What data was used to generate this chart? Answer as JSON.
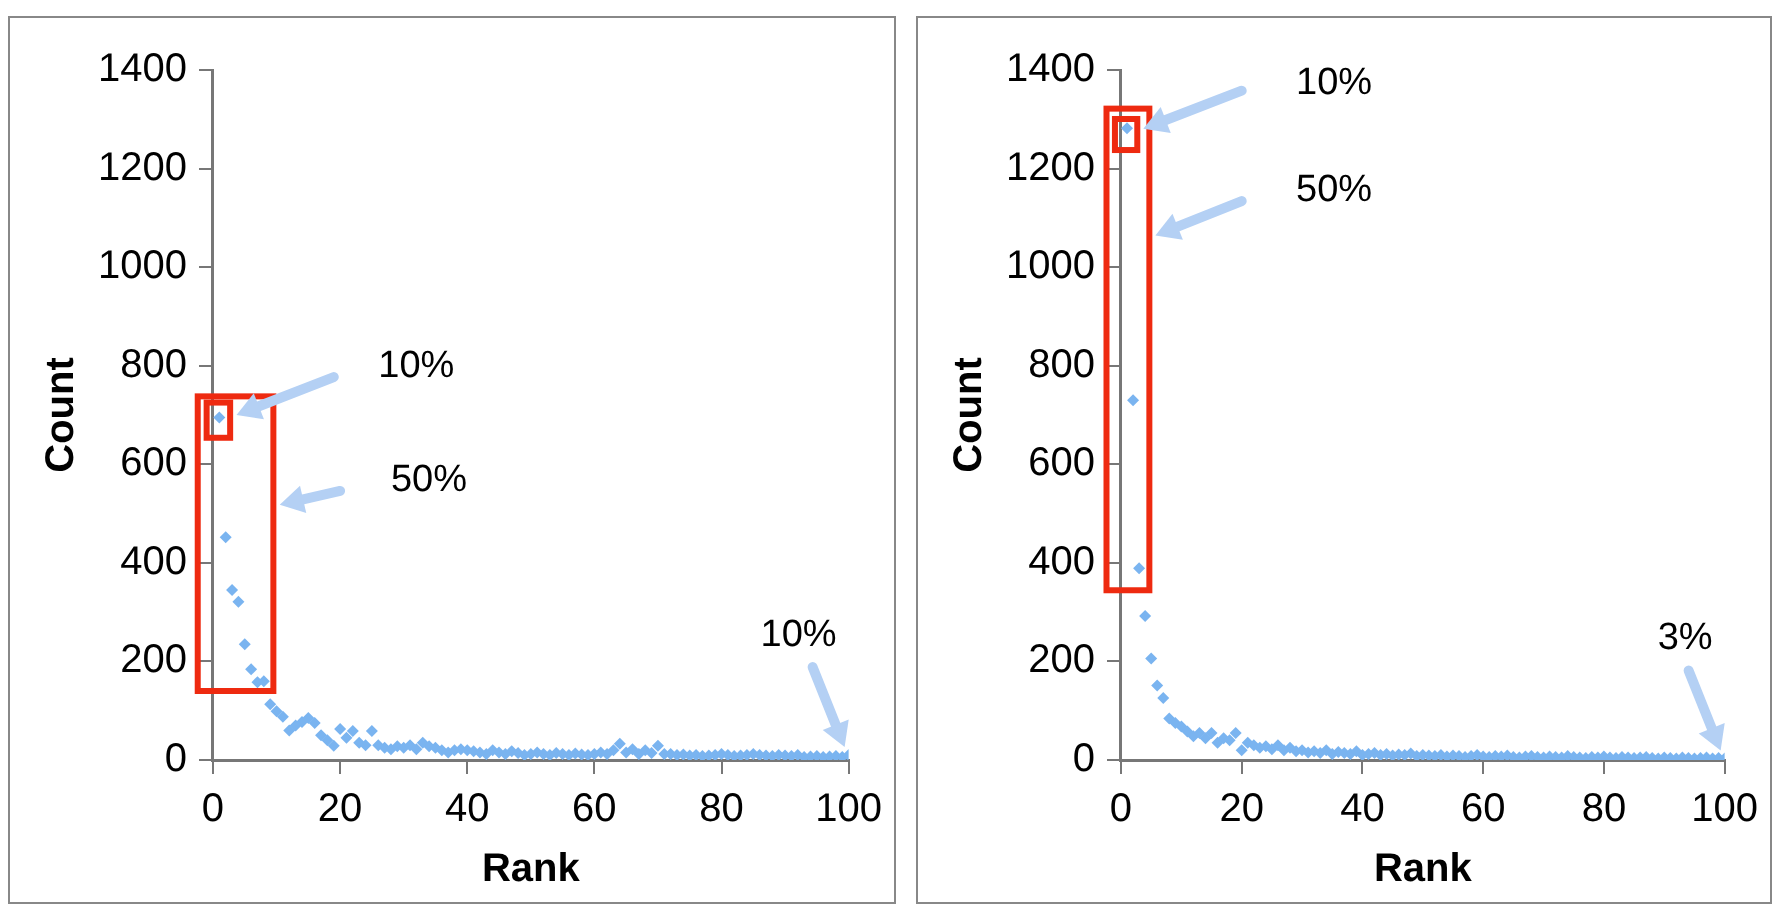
{
  "chart_data": [
    {
      "type": "scatter",
      "xlabel": "Rank",
      "ylabel": "Count",
      "xlim": [
        0,
        100
      ],
      "xticks": [
        0,
        20,
        40,
        60,
        80,
        100
      ],
      "ylim": [
        0,
        1400
      ],
      "yticks": [
        0,
        200,
        400,
        600,
        800,
        1000,
        1200,
        1400
      ],
      "marker": "diamond",
      "legend": false,
      "grid": false,
      "x": [
        1,
        2,
        3,
        4,
        5,
        6,
        7,
        8,
        9,
        10,
        11,
        12,
        13,
        14,
        15,
        16,
        17,
        18,
        19,
        20,
        21,
        22,
        23,
        24,
        25,
        26,
        27,
        28,
        29,
        30,
        31,
        32,
        33,
        34,
        35,
        36,
        37,
        38,
        39,
        40,
        41,
        42,
        43,
        44,
        45,
        46,
        47,
        48,
        49,
        50,
        51,
        52,
        53,
        54,
        55,
        56,
        57,
        58,
        59,
        60,
        61,
        62,
        63,
        64,
        65,
        66,
        67,
        68,
        69,
        70,
        71,
        72,
        73,
        74,
        75,
        76,
        77,
        78,
        79,
        80,
        81,
        82,
        83,
        84,
        85,
        86,
        87,
        88,
        89,
        90,
        91,
        92,
        93,
        94,
        95,
        96,
        97,
        98,
        99,
        100
      ],
      "series": [
        {
          "color": "#7ab4f0",
          "values": [
            695,
            452,
            345,
            321,
            235,
            184,
            158,
            160,
            113,
            99,
            88,
            60,
            70,
            77,
            85,
            75,
            50,
            40,
            29,
            63,
            45,
            59,
            35,
            30,
            59,
            30,
            25,
            22,
            28,
            25,
            30,
            22,
            35,
            28,
            25,
            20,
            15,
            20,
            22,
            20,
            18,
            15,
            12,
            20,
            15,
            12,
            18,
            14,
            10,
            12,
            15,
            12,
            10,
            14,
            12,
            10,
            13,
            11,
            10,
            12,
            15,
            12,
            20,
            33,
            15,
            22,
            12,
            20,
            14,
            29,
            12,
            12,
            10,
            11,
            9,
            10,
            8,
            9,
            10,
            12,
            10,
            8,
            9,
            10,
            12,
            10,
            9,
            8,
            10,
            9,
            8,
            10,
            6,
            7,
            8,
            6,
            7,
            8,
            6,
            10
          ]
        }
      ],
      "annotations": [
        "10%",
        "50%",
        {
          "text": "10%",
          "x": 100,
          "y": 10
        }
      ]
    },
    {
      "type": "scatter",
      "xlabel": "Rank",
      "ylabel": "Count",
      "xlim": [
        0,
        100
      ],
      "xticks": [
        0,
        20,
        40,
        60,
        80,
        100
      ],
      "ylim": [
        0,
        1400
      ],
      "yticks": [
        0,
        200,
        400,
        600,
        800,
        1000,
        1200,
        1400
      ],
      "marker": "diamond",
      "legend": false,
      "grid": false,
      "x": [
        1,
        2,
        3,
        4,
        5,
        6,
        7,
        8,
        9,
        10,
        11,
        12,
        13,
        14,
        15,
        16,
        17,
        18,
        19,
        20,
        21,
        22,
        23,
        24,
        25,
        26,
        27,
        28,
        29,
        30,
        31,
        32,
        33,
        34,
        35,
        36,
        37,
        38,
        39,
        40,
        41,
        42,
        43,
        44,
        45,
        46,
        47,
        48,
        49,
        50,
        51,
        52,
        53,
        54,
        55,
        56,
        57,
        58,
        59,
        60,
        61,
        62,
        63,
        64,
        65,
        66,
        67,
        68,
        69,
        70,
        71,
        72,
        73,
        74,
        75,
        76,
        77,
        78,
        79,
        80,
        81,
        82,
        83,
        84,
        85,
        86,
        87,
        88,
        89,
        90,
        91,
        92,
        93,
        94,
        95,
        96,
        97,
        98,
        99,
        100
      ],
      "series": [
        {
          "color": "#7ab4f0",
          "values": [
            1282,
            730,
            389,
            292,
            206,
            151,
            126,
            84,
            75,
            68,
            58,
            48,
            55,
            44,
            55,
            35,
            44,
            40,
            55,
            20,
            35,
            30,
            25,
            28,
            22,
            30,
            20,
            25,
            18,
            20,
            15,
            18,
            14,
            20,
            12,
            16,
            14,
            12,
            18,
            10,
            12,
            14,
            10,
            12,
            9,
            11,
            10,
            13,
            8,
            10,
            9,
            8,
            10,
            7,
            9,
            8,
            6,
            8,
            10,
            7,
            6,
            8,
            7,
            9,
            6,
            5,
            7,
            8,
            6,
            5,
            7,
            6,
            5,
            8,
            6,
            5,
            4,
            6,
            5,
            7,
            5,
            4,
            6,
            5,
            4,
            5,
            6,
            4,
            3,
            5,
            4,
            3,
            5,
            4,
            3,
            4,
            5,
            3,
            4,
            3
          ]
        }
      ],
      "annotations": [
        "10%",
        "50%",
        {
          "text": "3%",
          "x": 100,
          "y": 3
        }
      ]
    }
  ]
}
